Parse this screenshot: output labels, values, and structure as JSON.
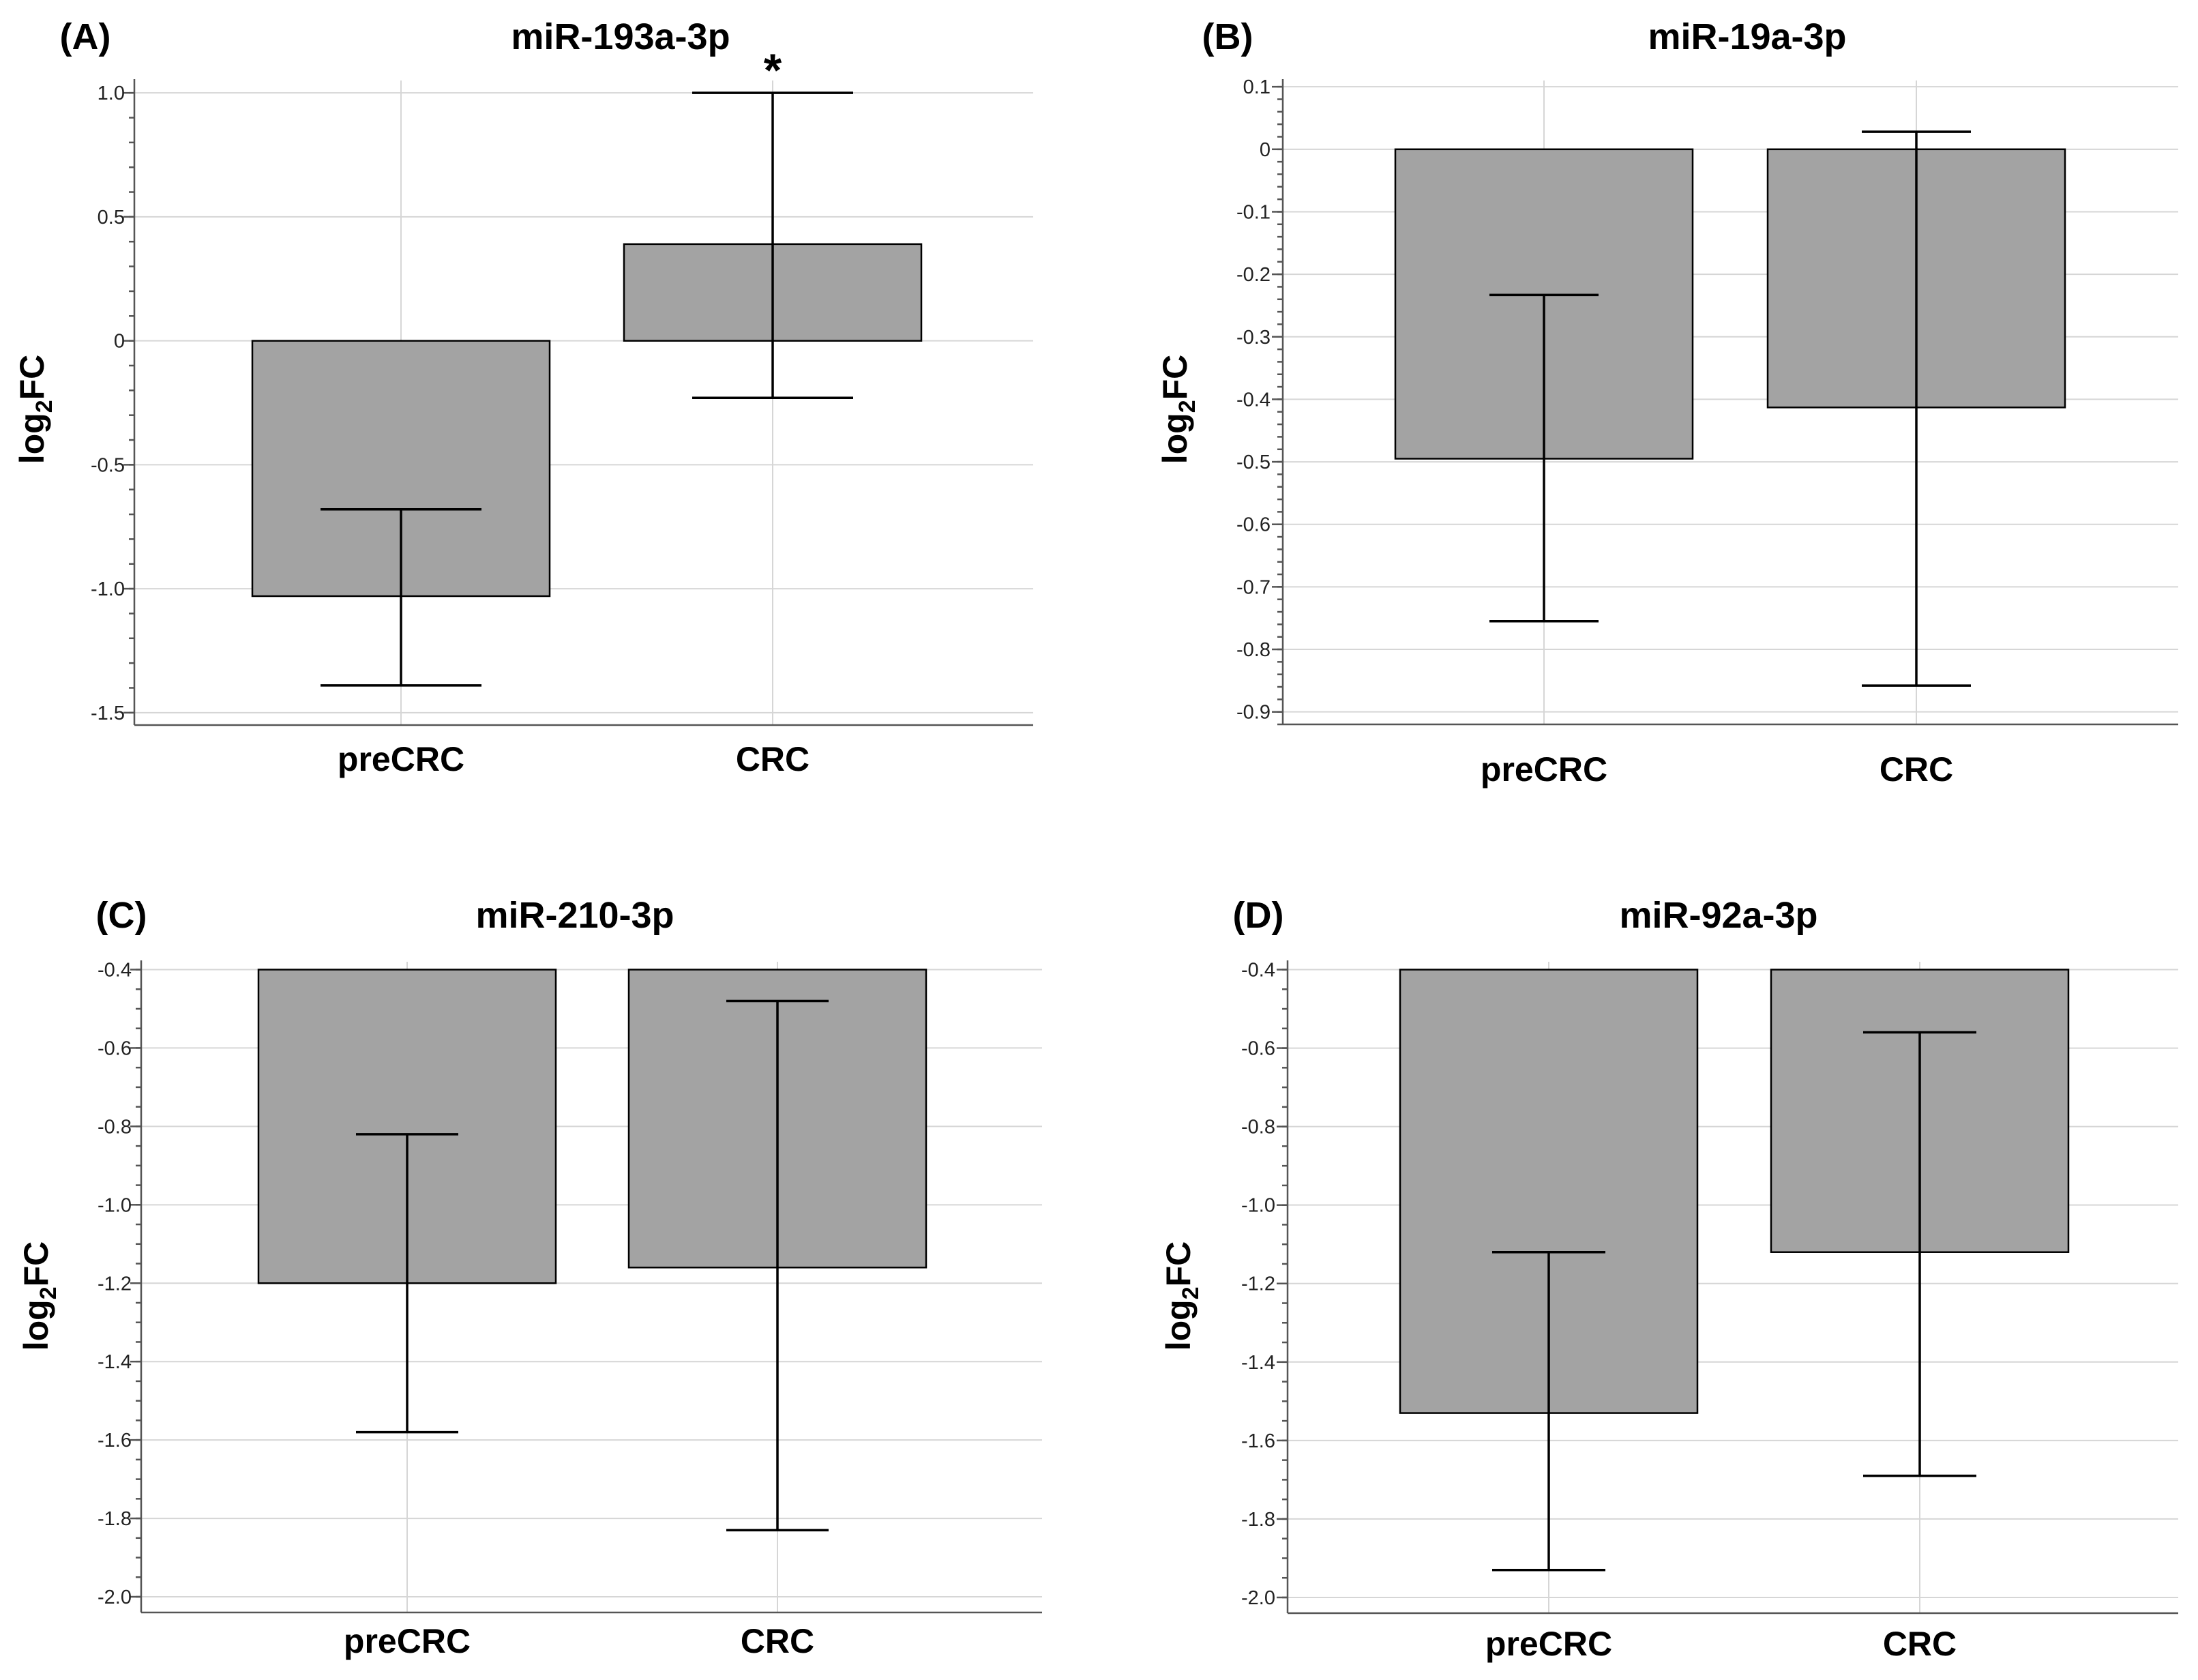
{
  "chart_data": [
    {
      "panel": "(A)",
      "type": "bar",
      "title": "miR-193a-3p",
      "ylabel": "log2FC",
      "ylabel_base": "log",
      "ylabel_sub": "2",
      "ylabel_rest": "FC",
      "categories": [
        "preCRC",
        "CRC"
      ],
      "bar_base": 0,
      "values": [
        -1.03,
        0.39
      ],
      "error_low": [
        -1.39,
        -0.23
      ],
      "error_high": [
        -0.68,
        1.0
      ],
      "annotations": [
        "",
        "*"
      ],
      "ylim": [
        -1.55,
        1.05
      ],
      "yticks": [
        1.0,
        0.5,
        0,
        -0.5,
        -1.0,
        -1.5
      ],
      "ytick_labels": [
        "1.0",
        "0.5",
        "0",
        "-0.5",
        "-1.0",
        "-1.5"
      ],
      "minor_step": 0.1,
      "grid": true
    },
    {
      "panel": "(B)",
      "type": "bar",
      "title": "miR-19a-3p",
      "ylabel": "log2FC",
      "ylabel_base": "log",
      "ylabel_sub": "2",
      "ylabel_rest": "FC",
      "categories": [
        "preCRC",
        "CRC"
      ],
      "bar_base": 0,
      "values": [
        -0.495,
        -0.413
      ],
      "error_low": [
        -0.755,
        -0.858
      ],
      "error_high": [
        -0.233,
        0.028
      ],
      "annotations": [
        "",
        ""
      ],
      "ylim": [
        -0.92,
        0.11
      ],
      "yticks": [
        0.1,
        0,
        -0.1,
        -0.2,
        -0.3,
        -0.4,
        -0.5,
        -0.6,
        -0.7,
        -0.8,
        -0.9
      ],
      "ytick_labels": [
        "0.1",
        "0",
        "-0.1",
        "-0.2",
        "-0.3",
        "-0.4",
        "-0.5",
        "-0.6",
        "-0.7",
        "-0.8",
        "-0.9"
      ],
      "minor_step": 0.02,
      "grid": true
    },
    {
      "panel": "(C)",
      "type": "bar",
      "title": "miR-210-3p",
      "ylabel": "log2FC",
      "ylabel_base": "log",
      "ylabel_sub": "2",
      "ylabel_rest": "FC",
      "categories": [
        "preCRC",
        "CRC"
      ],
      "bar_base": -0.4,
      "values": [
        -1.2,
        -1.16
      ],
      "error_low": [
        -1.58,
        -1.83
      ],
      "error_high": [
        -0.82,
        -0.48
      ],
      "annotations": [
        "",
        ""
      ],
      "ylim": [
        -2.04,
        -0.38
      ],
      "yticks": [
        -0.4,
        -0.6,
        -0.8,
        -1.0,
        -1.2,
        -1.4,
        -1.6,
        -1.8,
        -2.0
      ],
      "ytick_labels": [
        "-0.4",
        "-0.6",
        "-0.8",
        "-1.0",
        "-1.2",
        "-1.4",
        "-1.6",
        "-1.8",
        "-2.0"
      ],
      "minor_step": 0.05,
      "grid": true
    },
    {
      "panel": "(D)",
      "type": "bar",
      "title": "miR-92a-3p",
      "ylabel": "log2FC",
      "ylabel_base": "log",
      "ylabel_sub": "2",
      "ylabel_rest": "FC",
      "categories": [
        "preCRC",
        "CRC"
      ],
      "bar_base": -0.4,
      "values": [
        -1.53,
        -1.12
      ],
      "error_low": [
        -1.93,
        -1.69
      ],
      "error_high": [
        -1.12,
        -0.56
      ],
      "annotations": [
        "",
        ""
      ],
      "ylim": [
        -2.04,
        -0.38
      ],
      "yticks": [
        -0.4,
        -0.6,
        -0.8,
        -1.0,
        -1.2,
        -1.4,
        -1.6,
        -1.8,
        -2.0
      ],
      "ytick_labels": [
        "-0.4",
        "-0.6",
        "-0.8",
        "-1.0",
        "-1.2",
        "-1.4",
        "-1.6",
        "-1.8",
        "-2.0"
      ],
      "minor_step": 0.05,
      "grid": true
    }
  ]
}
